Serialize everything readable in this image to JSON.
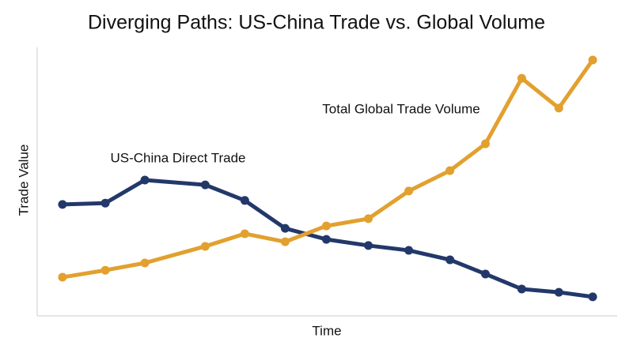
{
  "chart_data": {
    "type": "line",
    "title": "Diverging Paths: US-China Trade vs. Global Volume",
    "xlabel": "Time",
    "ylabel": "Trade Value",
    "x": [
      0,
      1.05,
      2.02,
      3.5,
      4.47,
      5.46,
      6.47,
      7.5,
      8.49,
      9.5,
      10.37,
      11.26,
      12.17,
      13
    ],
    "xlim": [
      -0.62,
      13.6
    ],
    "ylim": [
      0,
      100
    ],
    "series": [
      {
        "name": "US-China Direct Trade",
        "color": "#23386a",
        "values": [
          41.5,
          42,
          50.6,
          48.8,
          43,
          32.6,
          28.5,
          26.2,
          24.4,
          20.9,
          15.6,
          10,
          8.8,
          7.1
        ]
      },
      {
        "name": "Total Global Trade Volume",
        "color": "#e2a02e",
        "values": [
          14.4,
          17,
          19.7,
          25.9,
          30.6,
          27.6,
          33.5,
          36.2,
          46.5,
          54.1,
          64.1,
          88.5,
          77.4,
          95.3
        ]
      }
    ]
  }
}
